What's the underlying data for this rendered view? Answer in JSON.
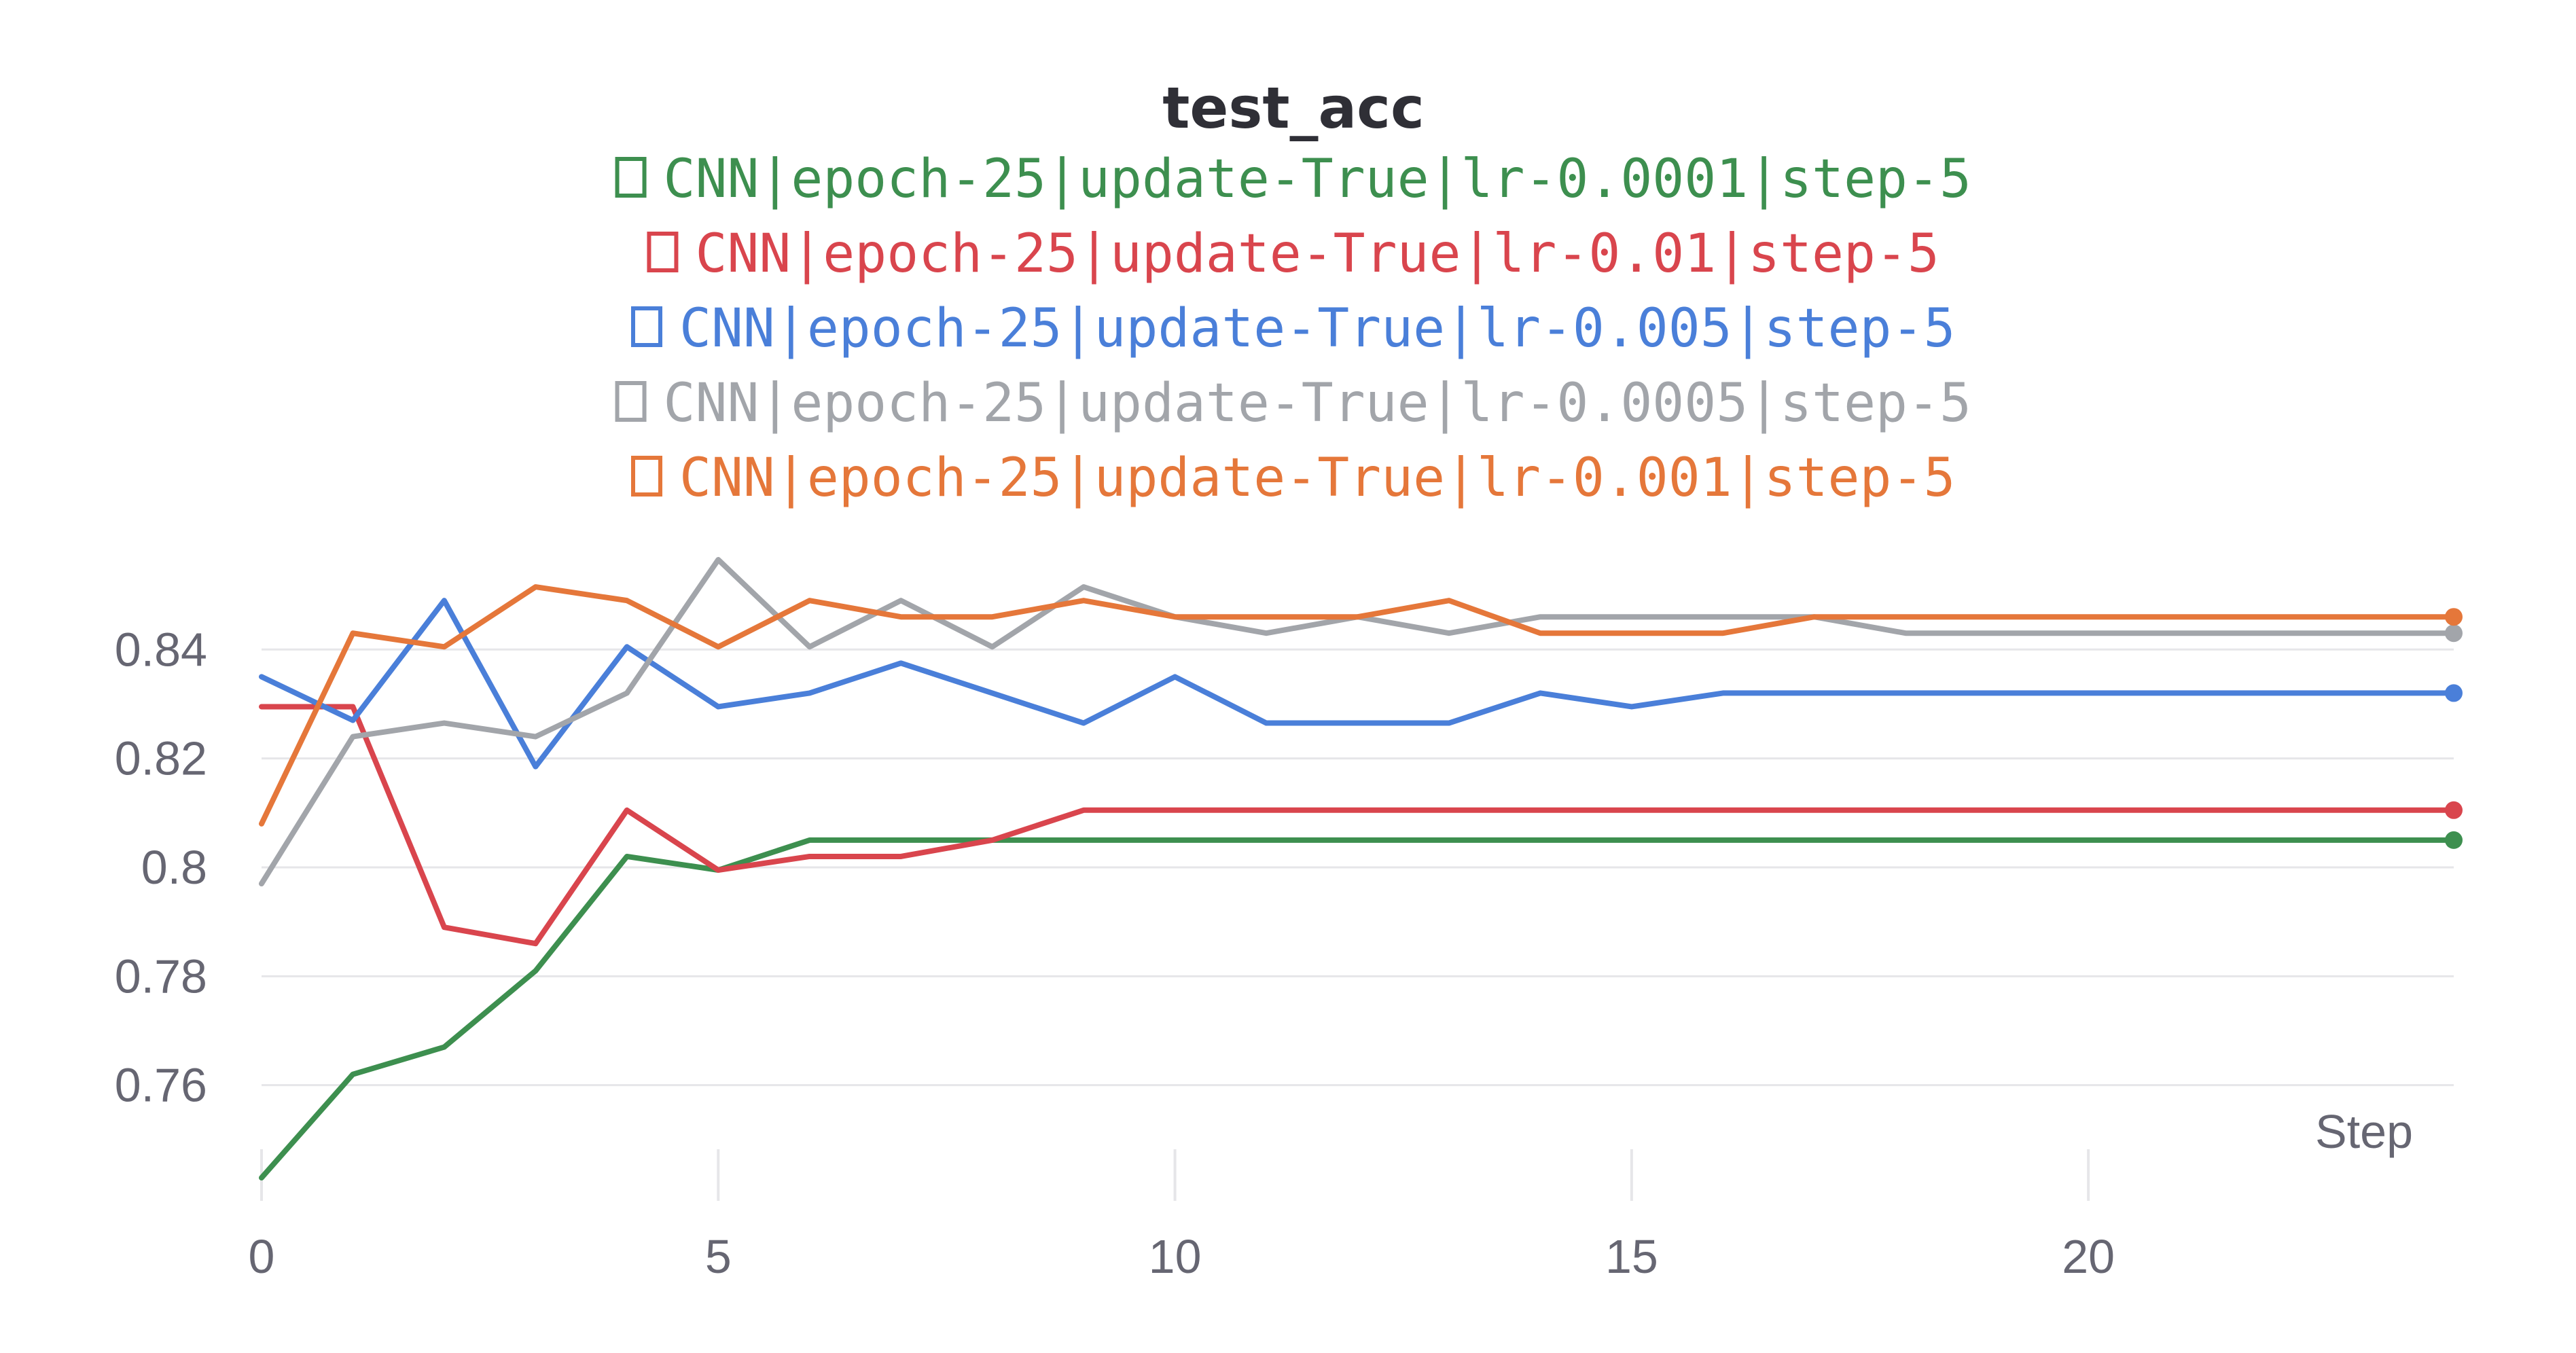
{
  "chart_data": {
    "type": "line",
    "title": "test_acc",
    "xlabel": "Step",
    "ylabel": "",
    "xlim": [
      0,
      24
    ],
    "ylim": [
      0.742,
      0.857
    ],
    "x_ticks": [
      0,
      5,
      10,
      15,
      20
    ],
    "y_ticks": [
      0.76,
      0.78,
      0.8,
      0.82,
      0.84
    ],
    "y_tick_labels": [
      "0.76",
      "0.78",
      "0.8",
      "0.82",
      "0.84"
    ],
    "legend_position": "top-center",
    "grid": "horizontal",
    "x": [
      0,
      1,
      2,
      3,
      4,
      5,
      6,
      7,
      8,
      9,
      10,
      11,
      12,
      13,
      14,
      15,
      16,
      17,
      18,
      19,
      20,
      21,
      22,
      23,
      24
    ],
    "series": [
      {
        "name": "CNN|epoch-25|update-True|lr-0.0001|step-5",
        "color": "#3d8f4f",
        "values": [
          0.743,
          0.762,
          0.767,
          0.781,
          0.802,
          0.7995,
          0.805,
          0.805,
          0.805,
          0.805,
          0.805,
          0.805,
          0.805,
          0.805,
          0.805,
          0.805,
          0.805,
          0.805,
          0.805,
          0.805,
          0.805,
          0.805,
          0.805,
          0.805,
          0.805
        ]
      },
      {
        "name": "CNN|epoch-25|update-True|lr-0.01|step-5",
        "color": "#d9454d",
        "values": [
          0.8295,
          0.8295,
          0.789,
          0.786,
          0.8105,
          0.7995,
          0.802,
          0.802,
          0.805,
          0.8105,
          0.8105,
          0.8105,
          0.8105,
          0.8105,
          0.8105,
          0.8105,
          0.8105,
          0.8105,
          0.8105,
          0.8105,
          0.8105,
          0.8105,
          0.8105,
          0.8105,
          0.8105
        ]
      },
      {
        "name": "CNN|epoch-25|update-True|lr-0.005|step-5",
        "color": "#4a7fd9",
        "values": [
          0.835,
          0.827,
          0.849,
          0.8185,
          0.8405,
          0.8295,
          0.832,
          0.8375,
          0.832,
          0.8265,
          0.835,
          0.8265,
          0.8265,
          0.8265,
          0.832,
          0.8295,
          0.832,
          0.832,
          0.832,
          0.832,
          0.832,
          0.832,
          0.832,
          0.832,
          0.832
        ]
      },
      {
        "name": "CNN|epoch-25|update-True|lr-0.0005|step-5",
        "color": "#a2a5aa",
        "values": [
          0.797,
          0.824,
          0.8265,
          0.824,
          0.832,
          0.8565,
          0.8405,
          0.849,
          0.8405,
          0.8515,
          0.846,
          0.843,
          0.846,
          0.843,
          0.846,
          0.846,
          0.846,
          0.846,
          0.843,
          0.843,
          0.843,
          0.843,
          0.843,
          0.843,
          0.843
        ]
      },
      {
        "name": "CNN|epoch-25|update-True|lr-0.001|step-5",
        "color": "#e5773a",
        "values": [
          0.808,
          0.843,
          0.8405,
          0.8515,
          0.849,
          0.8405,
          0.849,
          0.846,
          0.846,
          0.849,
          0.846,
          0.846,
          0.846,
          0.849,
          0.843,
          0.843,
          0.843,
          0.846,
          0.846,
          0.846,
          0.846,
          0.846,
          0.846,
          0.846,
          0.846
        ]
      }
    ]
  }
}
